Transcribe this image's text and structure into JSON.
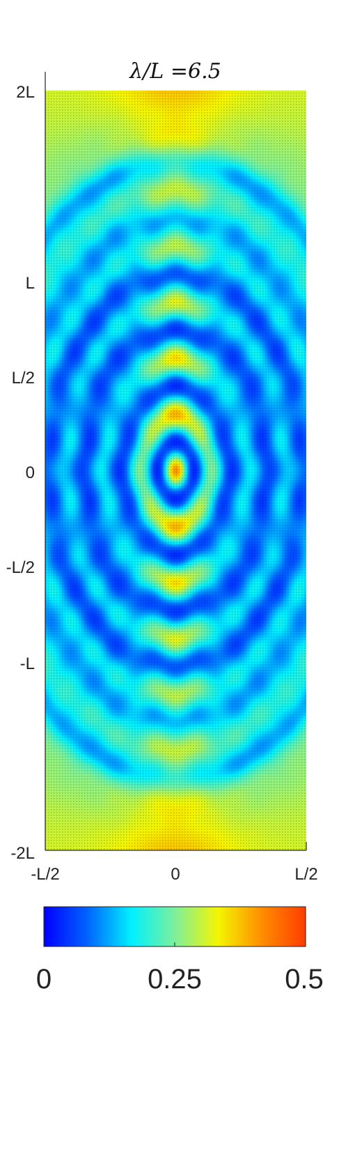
{
  "chart_data": {
    "type": "heatmap",
    "title": "λ/L =6.5",
    "xlabel": "",
    "ylabel": "",
    "xlim": [
      "-L/2",
      "L/2"
    ],
    "ylim": [
      "-2L",
      "2L"
    ],
    "x_ticks": [
      "-L/2",
      "0",
      "L/2"
    ],
    "y_ticks": [
      "2L",
      "L",
      "L/2",
      "0",
      "-L/2",
      "-L",
      "-2L"
    ],
    "colorbar": {
      "orientation": "horizontal",
      "min": 0,
      "max": 0.5,
      "tick_labels": [
        "0",
        "0.25",
        "0.5"
      ],
      "colormap": [
        "#0000ff",
        "#0064ff",
        "#00f0ff",
        "#7df09b",
        "#f5f500",
        "#ff8c00",
        "#ff3c00"
      ]
    },
    "field": {
      "description_level_far": 0.38,
      "center_peak": 0.5,
      "dark_rings_min": 0.05
    }
  }
}
